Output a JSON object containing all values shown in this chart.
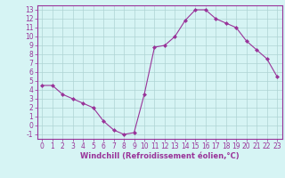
{
  "hours": [
    0,
    1,
    2,
    3,
    4,
    5,
    6,
    7,
    8,
    9,
    10,
    11,
    12,
    13,
    14,
    15,
    16,
    17,
    18,
    19,
    20,
    21,
    22,
    23
  ],
  "values": [
    4.5,
    4.5,
    3.5,
    3.0,
    2.5,
    2.0,
    0.5,
    -0.5,
    -1.0,
    -0.8,
    3.5,
    8.8,
    9.0,
    10.0,
    11.8,
    13.0,
    13.0,
    12.0,
    11.5,
    11.0,
    9.5,
    8.5,
    7.5,
    5.5
  ],
  "line_color": "#993399",
  "marker": "D",
  "marker_size": 2,
  "bg_color": "#d6f4f4",
  "grid_color": "#aed4d4",
  "xlabel": "Windchill (Refroidissement éolien,°C)",
  "xlim": [
    -0.5,
    23.5
  ],
  "ylim": [
    -1.5,
    13.5
  ],
  "yticks": [
    -1,
    0,
    1,
    2,
    3,
    4,
    5,
    6,
    7,
    8,
    9,
    10,
    11,
    12,
    13
  ],
  "xticks": [
    0,
    1,
    2,
    3,
    4,
    5,
    6,
    7,
    8,
    9,
    10,
    11,
    12,
    13,
    14,
    15,
    16,
    17,
    18,
    19,
    20,
    21,
    22,
    23
  ],
  "tick_color": "#993399",
  "label_color": "#993399",
  "spine_color": "#993399",
  "tick_fontsize": 5.5,
  "xlabel_fontsize": 6.0
}
